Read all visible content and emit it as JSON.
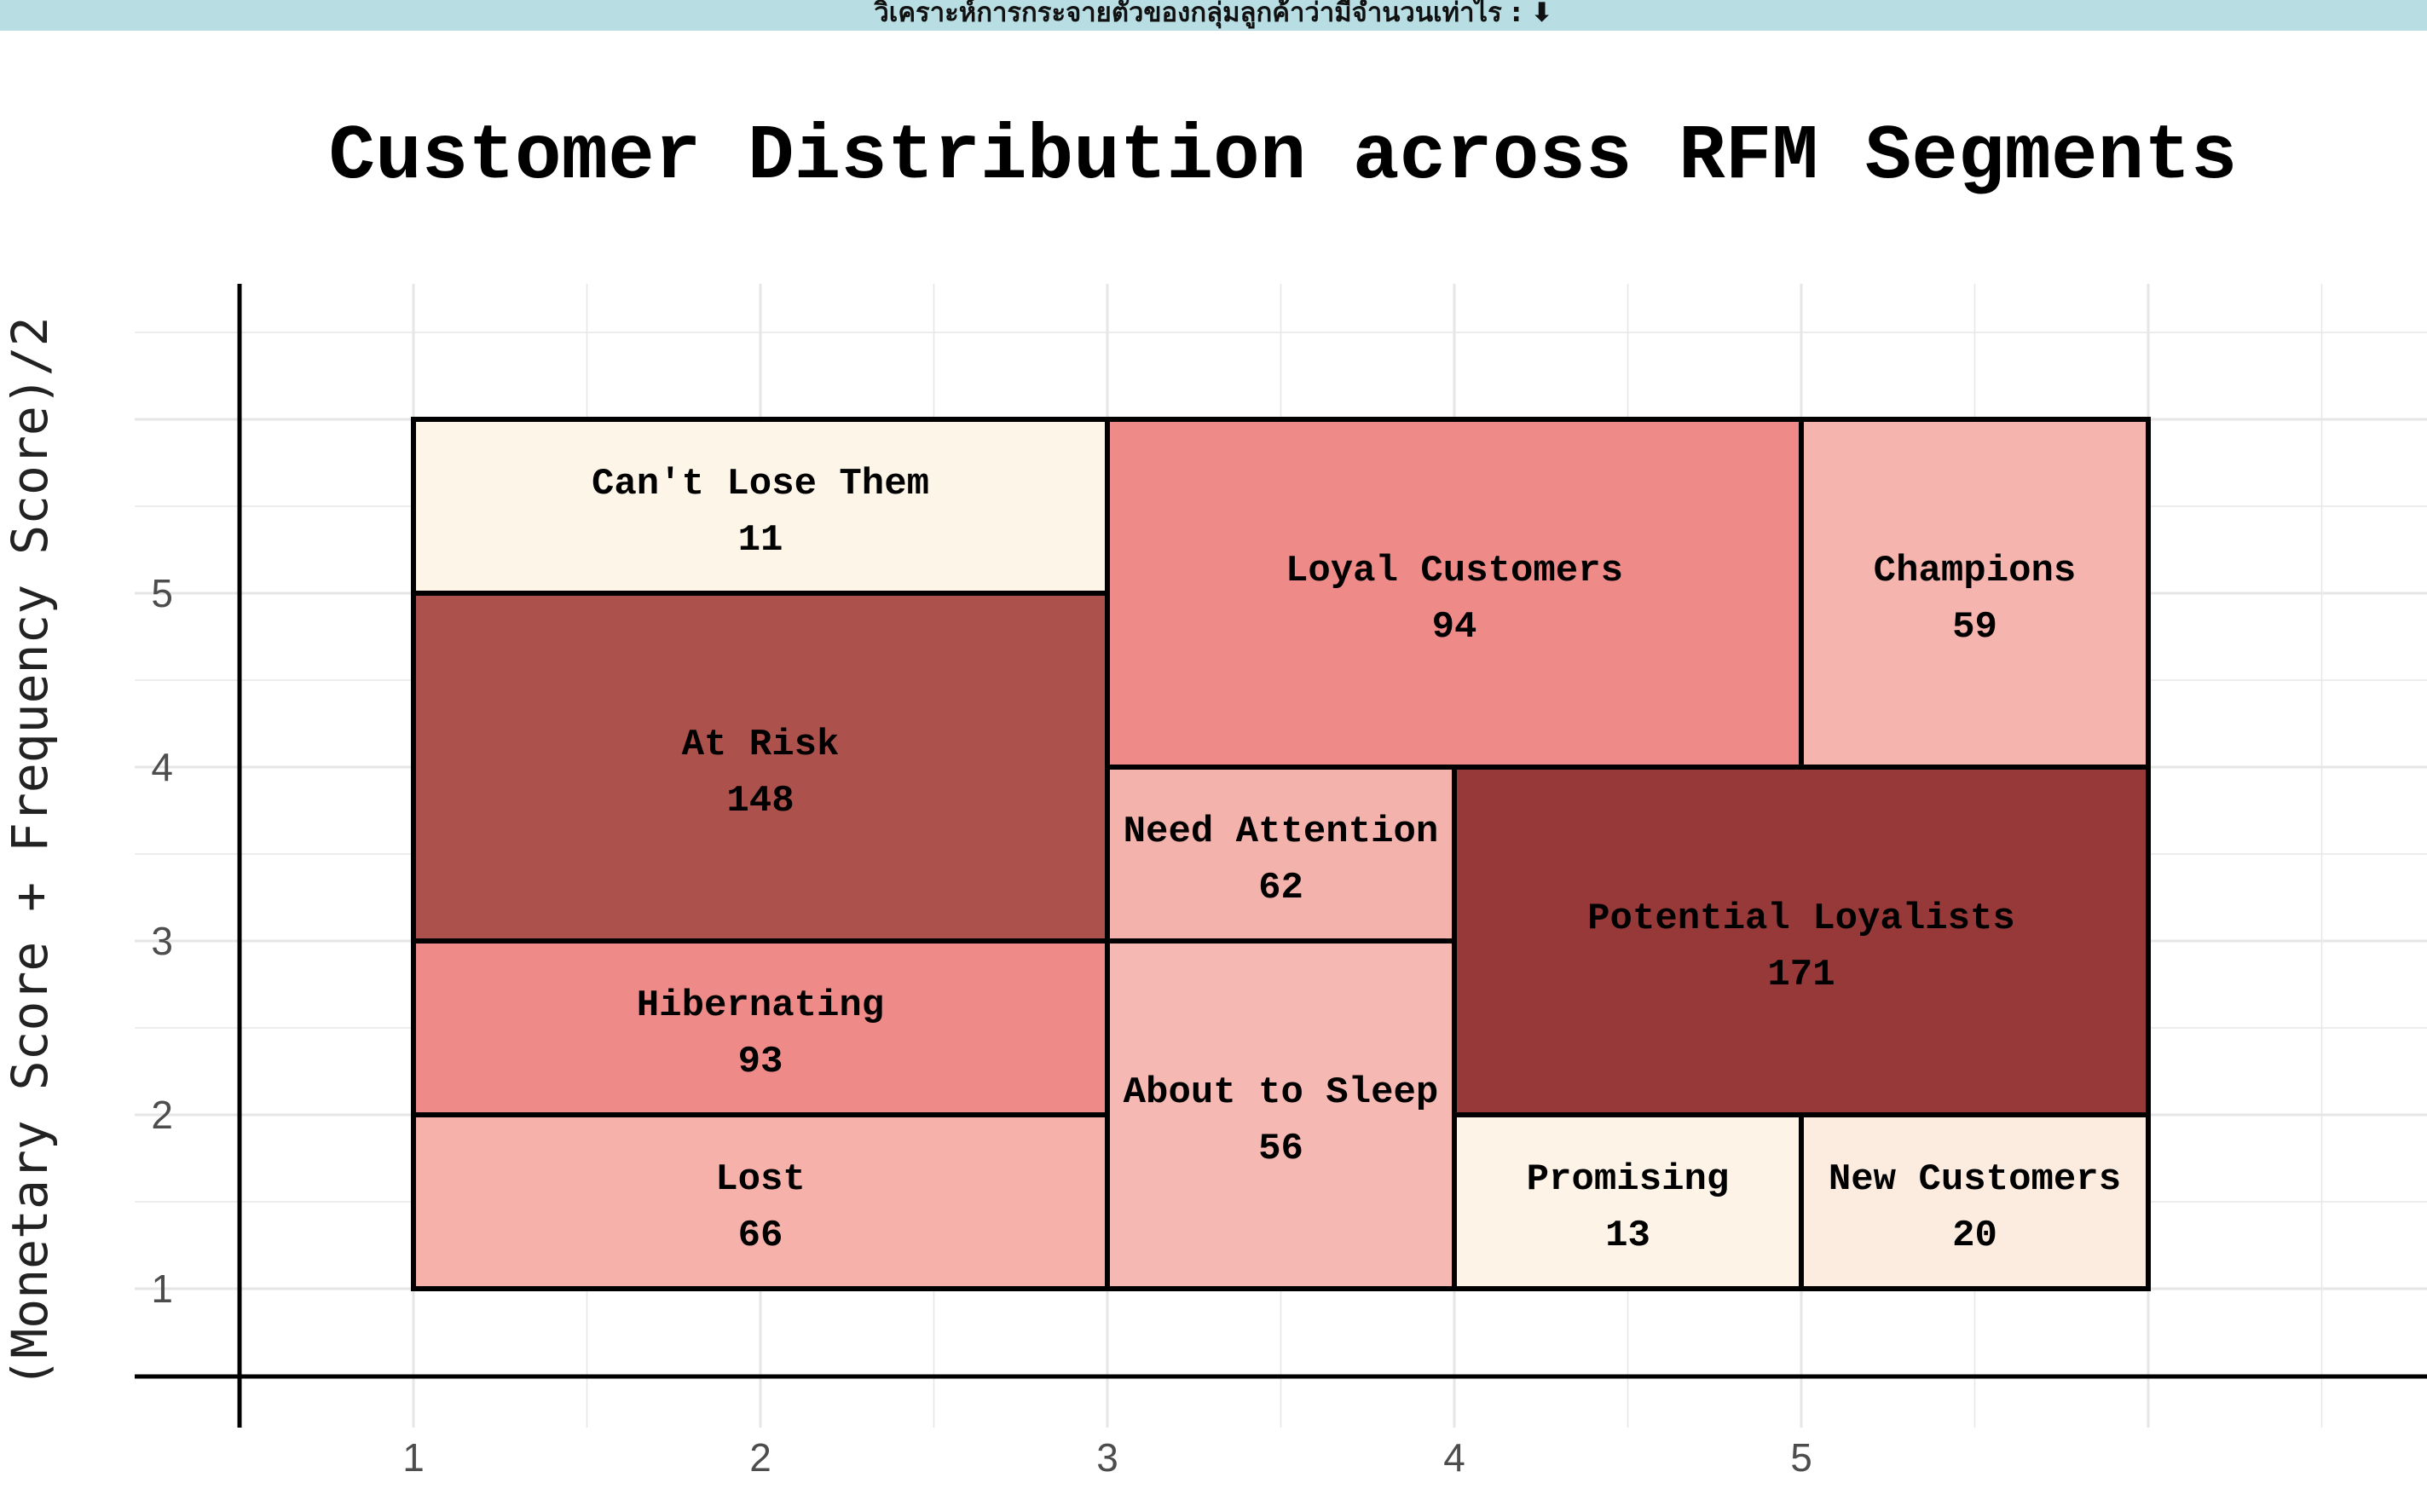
{
  "banner": {
    "text": "วิเคราะห์การกระจายตัวของกลุ่มลูกค้าว่ามีจำนวนเท่าไร : ⬇"
  },
  "chart_data": {
    "type": "heatmap",
    "title": "Customer Distribution across RFM Segments",
    "xlabel": "",
    "ylabel": "(Monetary Score + Frequency Score)/2",
    "x_ticks": [
      1,
      2,
      3,
      4,
      5
    ],
    "y_ticks": [
      1,
      2,
      3,
      4,
      5
    ],
    "xlim": [
      0.5,
      7.0
    ],
    "ylim": [
      0.5,
      7.0
    ],
    "grid": true,
    "color_scale": {
      "low": "#fdf5e6",
      "mid": "#ef8a87",
      "high": "#963938",
      "min": 11,
      "max": 171
    },
    "segments": [
      {
        "name": "Can't Lose Them",
        "count": 11,
        "x_range": [
          1,
          3
        ],
        "y_range": [
          5,
          6
        ],
        "color": "#fdf5e8"
      },
      {
        "name": "Loyal Customers",
        "count": 94,
        "x_range": [
          3,
          5
        ],
        "y_range": [
          4,
          6
        ],
        "color": "#ee8a87"
      },
      {
        "name": "Champions",
        "count": 59,
        "x_range": [
          5,
          6
        ],
        "y_range": [
          4,
          6
        ],
        "color": "#f5b4ae"
      },
      {
        "name": "At Risk",
        "count": 148,
        "x_range": [
          1,
          3
        ],
        "y_range": [
          3,
          5
        ],
        "color": "#ad514d"
      },
      {
        "name": "Need Attention",
        "count": 62,
        "x_range": [
          3,
          4
        ],
        "y_range": [
          3,
          4
        ],
        "color": "#f4b2ac"
      },
      {
        "name": "Potential Loyalists",
        "count": 171,
        "x_range": [
          4,
          6
        ],
        "y_range": [
          2,
          4
        ],
        "color": "#963938"
      },
      {
        "name": "Hibernating",
        "count": 93,
        "x_range": [
          1,
          3
        ],
        "y_range": [
          2,
          3
        ],
        "color": "#ee8a87"
      },
      {
        "name": "About to Sleep",
        "count": 56,
        "x_range": [
          3,
          4
        ],
        "y_range": [
          1,
          3
        ],
        "color": "#f5b8b2"
      },
      {
        "name": "Lost",
        "count": 66,
        "x_range": [
          1,
          3
        ],
        "y_range": [
          1,
          2
        ],
        "color": "#f5b1aa"
      },
      {
        "name": "Promising",
        "count": 13,
        "x_range": [
          4,
          5
        ],
        "y_range": [
          1,
          2
        ],
        "color": "#fdf4e7"
      },
      {
        "name": "New Customers",
        "count": 20,
        "x_range": [
          5,
          6
        ],
        "y_range": [
          1,
          2
        ],
        "color": "#fcecdf"
      }
    ]
  }
}
